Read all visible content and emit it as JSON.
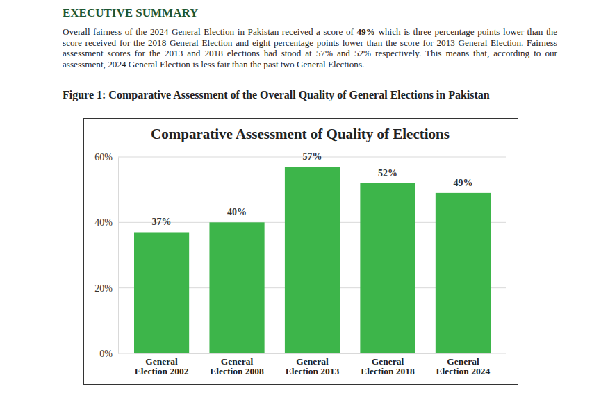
{
  "heading": "EXECUTIVE SUMMARY",
  "paragraph": {
    "text_before": "Overall fairness of the 2024 General Election in Pakistan received a score of ",
    "emphasis": "49%",
    "text_after": " which is three percentage points lower than the score received for the 2018 General Election and eight percentage points lower than the score for 2013 General Election. Fairness assessment scores for the 2013 and 2018 elections had stood at 57% and 52% respectively. This means that, according to our assessment, 2024 General Election is less fair than the past two General Elections."
  },
  "figure_caption": "Figure 1: Comparative Assessment of the Overall Quality of General Elections in Pakistan",
  "chart_data": {
    "type": "bar",
    "title": "Comparative Assessment of Quality of Elections",
    "categories": [
      "General Election 2002",
      "General Election 2008",
      "General Election 2013",
      "General Election 2018",
      "General Election 2024"
    ],
    "values": [
      37,
      40,
      57,
      52,
      49
    ],
    "value_labels": [
      "37%",
      "40%",
      "57%",
      "52%",
      "49%"
    ],
    "color": "#3db54a",
    "ylim": [
      0,
      60
    ],
    "yticks": [
      {
        "value": 0,
        "label": "0%"
      },
      {
        "value": 20,
        "label": "20%"
      },
      {
        "value": 40,
        "label": "40%"
      },
      {
        "value": 60,
        "label": "60%"
      }
    ],
    "grid": true,
    "data_labels": true
  }
}
